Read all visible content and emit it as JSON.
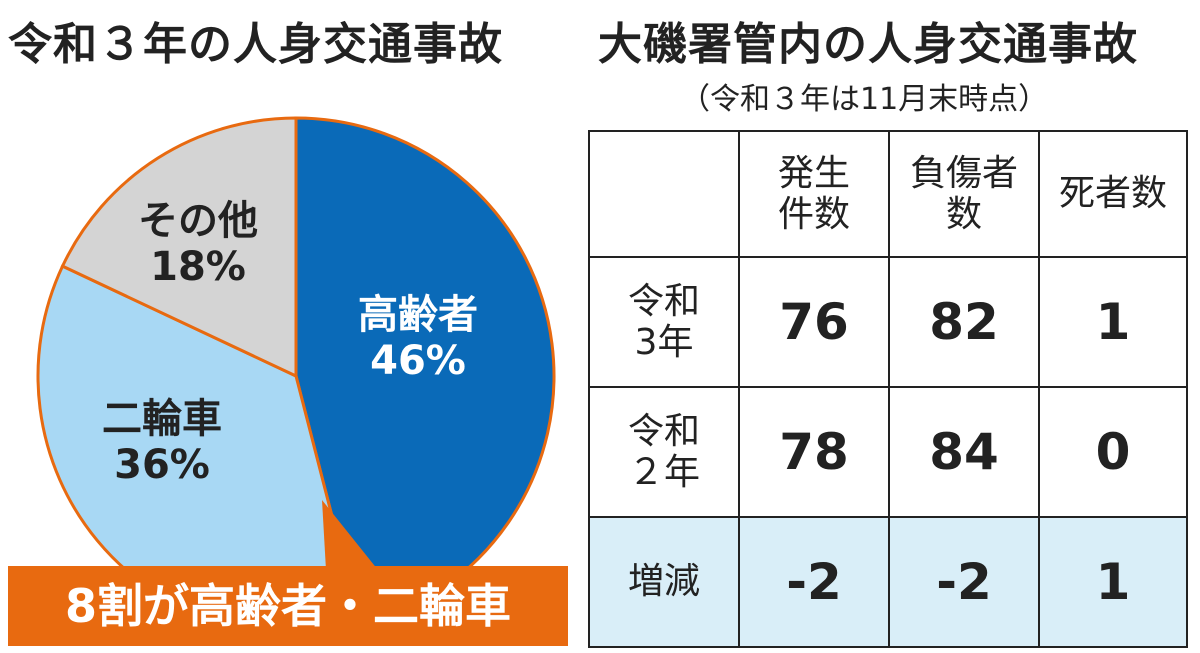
{
  "left_title": "令和３年の人身交通事故",
  "right_title": "大磯署管内の人身交通事故",
  "right_subtitle": "（令和３年は11月末時点）",
  "callout": "8割が高齢者・二輪車",
  "colors": {
    "elderly": "#0a6ab8",
    "two_wheel": "#a8d8f4",
    "other": "#d4d4d4",
    "outline": "#e86a10",
    "table_highlight": "#d9eef8"
  },
  "chart_data": [
    {
      "type": "pie",
      "title": "令和３年の人身交通事故",
      "slices": [
        {
          "name": "高齢者",
          "value": 46,
          "label": "46%",
          "color": "#0a6ab8",
          "text_color": "#ffffff"
        },
        {
          "name": "二輪車",
          "value": 36,
          "label": "36%",
          "color": "#a8d8f4",
          "text_color": "#222222"
        },
        {
          "name": "その他",
          "value": 18,
          "label": "18%",
          "color": "#d4d4d4",
          "text_color": "#222222"
        }
      ]
    },
    {
      "type": "table",
      "title": "大磯署管内の人身交通事故",
      "subtitle": "（令和３年は11月末時点）",
      "columns": [
        {
          "line1": "発生",
          "line2": "件数"
        },
        {
          "line1": "負傷者",
          "line2": "数"
        },
        {
          "line1": "死者数",
          "line2": ""
        }
      ],
      "rows": [
        {
          "label1": "令和",
          "label2": "3年",
          "values": [
            "76",
            "82",
            "1"
          ]
        },
        {
          "label1": "令和",
          "label2": "２年",
          "values": [
            "78",
            "84",
            "0"
          ]
        },
        {
          "label1": "増減",
          "label2": "",
          "values": [
            "-2",
            "-2",
            "1"
          ]
        }
      ]
    }
  ]
}
